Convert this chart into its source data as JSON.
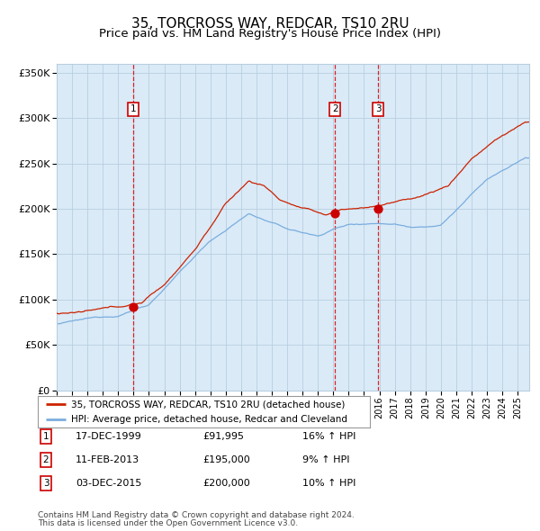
{
  "title": "35, TORCROSS WAY, REDCAR, TS10 2RU",
  "subtitle": "Price paid vs. HM Land Registry's House Price Index (HPI)",
  "legend_line1": "35, TORCROSS WAY, REDCAR, TS10 2RU (detached house)",
  "legend_line2": "HPI: Average price, detached house, Redcar and Cleveland",
  "footer1": "Contains HM Land Registry data © Crown copyright and database right 2024.",
  "footer2": "This data is licensed under the Open Government Licence v3.0.",
  "transactions": [
    {
      "num": 1,
      "date": "17-DEC-1999",
      "price": "£91,995",
      "pct": "16% ↑ HPI"
    },
    {
      "num": 2,
      "date": "11-FEB-2013",
      "price": "£195,000",
      "pct": "9% ↑ HPI"
    },
    {
      "num": 3,
      "date": "03-DEC-2015",
      "price": "£200,000",
      "pct": "10% ↑ HPI"
    }
  ],
  "transaction_dates_decimal": [
    1999.96,
    2013.11,
    2015.92
  ],
  "transaction_prices": [
    91995,
    195000,
    200000
  ],
  "ylim": [
    0,
    360000
  ],
  "xlim_start": 1995.0,
  "xlim_end": 2025.75,
  "hpi_color": "#7aadde",
  "price_color": "#cc2200",
  "marker_color": "#cc0000",
  "vline_color": "#dd0000",
  "plot_bg": "#daeaf7",
  "grid_color": "#b8cfe0",
  "label_box_color": "#cc0000",
  "title_fontsize": 11,
  "subtitle_fontsize": 9.5
}
